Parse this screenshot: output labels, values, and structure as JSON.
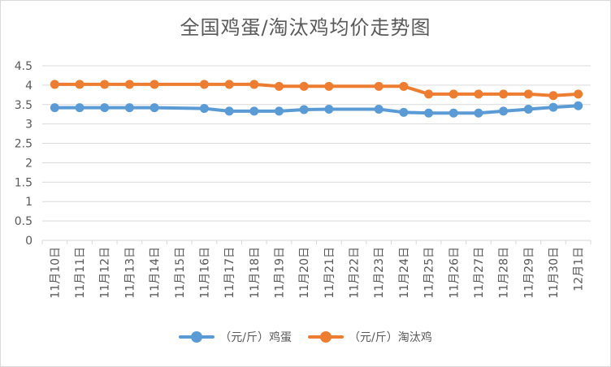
{
  "chart_data": {
    "type": "line",
    "title": "全国鸡蛋/淘汰鸡均价走势图",
    "categories": [
      "11月10日",
      "11月11日",
      "11月12日",
      "11月13日",
      "11月14日",
      "11月15日",
      "11月16日",
      "11月17日",
      "11月18日",
      "11月19日",
      "11月20日",
      "11月21日",
      "11月22日",
      "11月23日",
      "11月24日",
      "11月25日",
      "11月26日",
      "11月27日",
      "11月28日",
      "11月29日",
      "11月30日",
      "12月1日"
    ],
    "yticks": [
      "0",
      "0.5",
      "1",
      "1.5",
      "2",
      "2.5",
      "3",
      "3.5",
      "4",
      "4.5"
    ],
    "ylim": [
      0,
      4.5
    ],
    "grid": true,
    "legend_position": "bottom",
    "series": [
      {
        "name": "（元/斤）鸡蛋",
        "color": "#5b9bd5",
        "values": [
          3.42,
          3.42,
          3.42,
          3.42,
          3.42,
          null,
          3.4,
          3.33,
          3.33,
          3.33,
          3.37,
          3.38,
          null,
          3.38,
          3.3,
          3.28,
          3.28,
          3.28,
          3.33,
          3.38,
          3.43,
          3.47
        ]
      },
      {
        "name": "（元/斤）淘汰鸡",
        "color": "#ed7d31",
        "values": [
          4.02,
          4.02,
          4.02,
          4.02,
          4.02,
          null,
          4.02,
          4.02,
          4.02,
          3.97,
          3.97,
          3.97,
          null,
          3.97,
          3.97,
          3.77,
          3.77,
          3.77,
          3.77,
          3.77,
          3.73,
          3.77
        ]
      }
    ]
  }
}
